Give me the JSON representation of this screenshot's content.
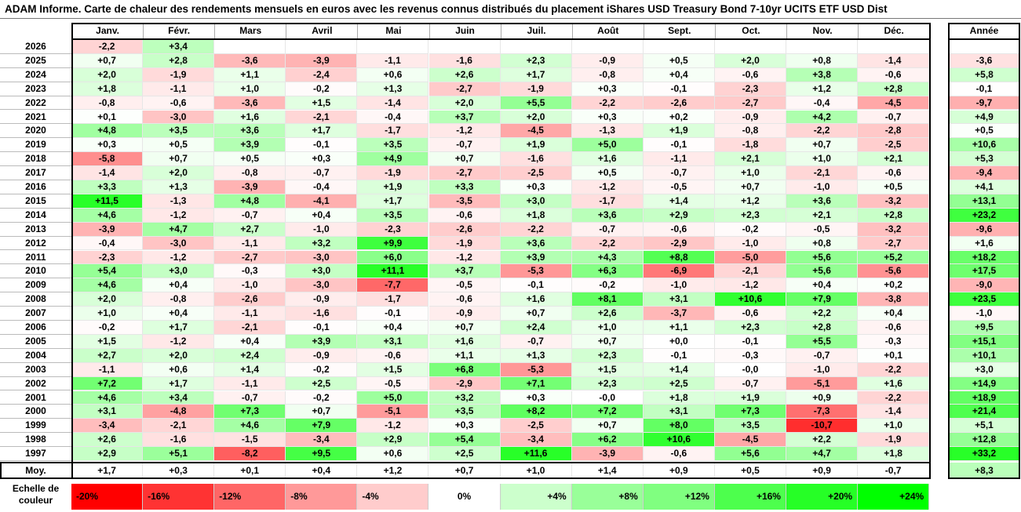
{
  "title": "ADAM Informe. Carte de chaleur des rendements mensuels en euros avec les revenus connus distribués du placement iShares USD Treasury Bond 7-10yr UCITS ETF USD Dist",
  "chart_data": {
    "type": "heatmap",
    "title": "ADAM Informe. Carte de chaleur des rendements mensuels en euros avec les revenus connus distribués du placement iShares USD Treasury Bond 7-10yr UCITS ETF USD Dist",
    "columns": [
      "Janv.",
      "Févr.",
      "Mars",
      "Avril",
      "Mai",
      "Juin",
      "Juil.",
      "Août",
      "Sept.",
      "Oct.",
      "Nov.",
      "Déc."
    ],
    "year_header": "Année",
    "rows": [
      {
        "year": "2026",
        "months": [
          "-2,2",
          "+3,4",
          "",
          "",
          "",
          "",
          "",
          "",
          "",
          "",
          "",
          ""
        ],
        "annual": ""
      },
      {
        "year": "2025",
        "months": [
          "+0,7",
          "+2,8",
          "-3,6",
          "-3,9",
          "-1,1",
          "-1,6",
          "+2,3",
          "-0,9",
          "+0,5",
          "+2,0",
          "+0,8",
          "-1,4"
        ],
        "annual": "-3,6"
      },
      {
        "year": "2024",
        "months": [
          "+2,0",
          "-1,9",
          "+1,1",
          "-2,4",
          "+0,6",
          "+2,6",
          "+1,7",
          "-0,8",
          "+0,4",
          "-0,6",
          "+3,8",
          "-0,6"
        ],
        "annual": "+5,8"
      },
      {
        "year": "2023",
        "months": [
          "+1,8",
          "-1,1",
          "+1,0",
          "-0,2",
          "+1,3",
          "-2,7",
          "-1,9",
          "+0,3",
          "-0,1",
          "-2,3",
          "+1,2",
          "+2,8"
        ],
        "annual": "-0,1"
      },
      {
        "year": "2022",
        "months": [
          "-0,8",
          "-0,6",
          "-3,6",
          "+1,5",
          "-1,4",
          "+2,0",
          "+5,5",
          "-2,2",
          "-2,6",
          "-2,7",
          "-0,4",
          "-4,5"
        ],
        "annual": "-9,7"
      },
      {
        "year": "2021",
        "months": [
          "+0,1",
          "-3,0",
          "+1,6",
          "-2,1",
          "-0,4",
          "+3,7",
          "+2,0",
          "+0,3",
          "+0,2",
          "-0,9",
          "+4,2",
          "-0,7"
        ],
        "annual": "+4,9"
      },
      {
        "year": "2020",
        "months": [
          "+4,8",
          "+3,5",
          "+3,6",
          "+1,7",
          "-1,7",
          "-1,2",
          "-4,5",
          "-1,3",
          "+1,9",
          "-0,8",
          "-2,2",
          "-2,8"
        ],
        "annual": "+0,5"
      },
      {
        "year": "2019",
        "months": [
          "+0,3",
          "+0,5",
          "+3,9",
          "-0,1",
          "+3,5",
          "-0,7",
          "+1,9",
          "+5,0",
          "-0,1",
          "-1,8",
          "+0,7",
          "-2,5"
        ],
        "annual": "+10,6"
      },
      {
        "year": "2018",
        "months": [
          "-5,8",
          "+0,7",
          "+0,5",
          "+0,3",
          "+4,9",
          "+0,7",
          "-1,6",
          "+1,6",
          "-1,1",
          "+2,1",
          "+1,0",
          "+2,1"
        ],
        "annual": "+5,3"
      },
      {
        "year": "2017",
        "months": [
          "-1,4",
          "+2,0",
          "-0,8",
          "-0,7",
          "-1,9",
          "-2,7",
          "-2,5",
          "+0,5",
          "-0,7",
          "+1,0",
          "-2,1",
          "-0,6"
        ],
        "annual": "-9,4"
      },
      {
        "year": "2016",
        "months": [
          "+3,3",
          "+1,3",
          "-3,9",
          "-0,4",
          "+1,9",
          "+3,3",
          "+0,3",
          "-1,2",
          "-0,5",
          "+0,7",
          "-1,0",
          "+0,5"
        ],
        "annual": "+4,1"
      },
      {
        "year": "2015",
        "months": [
          "+11,5",
          "-1,3",
          "+4,8",
          "-4,1",
          "+1,7",
          "-3,5",
          "+3,0",
          "-1,7",
          "+1,4",
          "+1,2",
          "+3,6",
          "-3,2"
        ],
        "annual": "+13,1"
      },
      {
        "year": "2014",
        "months": [
          "+4,6",
          "-1,2",
          "-0,7",
          "+0,4",
          "+3,5",
          "-0,6",
          "+1,8",
          "+3,6",
          "+2,9",
          "+2,3",
          "+2,1",
          "+2,8"
        ],
        "annual": "+23,2"
      },
      {
        "year": "2013",
        "months": [
          "-3,9",
          "+4,7",
          "+2,7",
          "-1,0",
          "-2,3",
          "-2,6",
          "-2,2",
          "-0,7",
          "-0,6",
          "-0,2",
          "-0,5",
          "-3,2"
        ],
        "annual": "-9,6"
      },
      {
        "year": "2012",
        "months": [
          "-0,4",
          "-3,0",
          "-1,1",
          "+3,2",
          "+9,9",
          "-1,9",
          "+3,6",
          "-2,2",
          "-2,9",
          "-1,0",
          "+0,8",
          "-2,7"
        ],
        "annual": "+1,6"
      },
      {
        "year": "2011",
        "months": [
          "-2,3",
          "-1,2",
          "-2,7",
          "-3,0",
          "+6,0",
          "-1,2",
          "+3,9",
          "+4,3",
          "+8,8",
          "-5,0",
          "+5,6",
          "+5,2"
        ],
        "annual": "+18,2"
      },
      {
        "year": "2010",
        "months": [
          "+5,4",
          "+3,0",
          "-0,3",
          "+3,0",
          "+11,1",
          "+3,7",
          "-5,3",
          "+6,3",
          "-6,9",
          "-2,1",
          "+5,6",
          "-5,6"
        ],
        "annual": "+17,5"
      },
      {
        "year": "2009",
        "months": [
          "+4,6",
          "+0,4",
          "-1,0",
          "-3,0",
          "-7,7",
          "-0,5",
          "-0,1",
          "-0,2",
          "-1,0",
          "-1,2",
          "+0,4",
          "+0,2"
        ],
        "annual": "-9,0"
      },
      {
        "year": "2008",
        "months": [
          "+2,0",
          "-0,8",
          "-2,6",
          "-0,9",
          "-1,7",
          "-0,6",
          "+1,6",
          "+8,1",
          "+3,1",
          "+10,6",
          "+7,9",
          "-3,8"
        ],
        "annual": "+23,5"
      },
      {
        "year": "2007",
        "months": [
          "+1,0",
          "+0,4",
          "-1,1",
          "-1,6",
          "-0,1",
          "-0,9",
          "+0,7",
          "+2,6",
          "-3,7",
          "-0,6",
          "+2,2",
          "+0,4"
        ],
        "annual": "-1,0"
      },
      {
        "year": "2006",
        "months": [
          "-0,2",
          "+1,7",
          "-2,1",
          "-0,1",
          "+0,4",
          "+0,7",
          "+2,4",
          "+1,0",
          "+1,1",
          "+2,3",
          "+2,8",
          "-0,6"
        ],
        "annual": "+9,5"
      },
      {
        "year": "2005",
        "months": [
          "+1,5",
          "-1,2",
          "+0,4",
          "+3,9",
          "+3,1",
          "+1,6",
          "-0,7",
          "+0,7",
          "+0,0",
          "-0,1",
          "+5,5",
          "-0,3"
        ],
        "annual": "+15,1"
      },
      {
        "year": "2004",
        "months": [
          "+2,7",
          "+2,0",
          "+2,4",
          "-0,9",
          "-0,6",
          "+1,1",
          "+1,3",
          "+2,3",
          "-0,1",
          "-0,3",
          "-0,7",
          "+0,1"
        ],
        "annual": "+10,1"
      },
      {
        "year": "2003",
        "months": [
          "-1,1",
          "+0,6",
          "+1,4",
          "-0,2",
          "+1,5",
          "+6,8",
          "-5,3",
          "+1,5",
          "+1,4",
          "-0,0",
          "-1,0",
          "-2,2"
        ],
        "annual": "+3,0"
      },
      {
        "year": "2002",
        "months": [
          "+7,2",
          "+1,7",
          "-1,1",
          "+2,5",
          "-0,5",
          "-2,9",
          "+7,1",
          "+2,3",
          "+2,5",
          "-0,7",
          "-5,1",
          "+1,6"
        ],
        "annual": "+14,9"
      },
      {
        "year": "2001",
        "months": [
          "+4,6",
          "+3,4",
          "-0,7",
          "-0,2",
          "+5,0",
          "+3,2",
          "+0,3",
          "-0,0",
          "+1,8",
          "+1,9",
          "+0,9",
          "-2,2"
        ],
        "annual": "+18,9"
      },
      {
        "year": "2000",
        "months": [
          "+3,1",
          "-4,8",
          "+7,3",
          "+0,7",
          "-5,1",
          "+3,5",
          "+8,2",
          "+7,2",
          "+3,1",
          "+7,3",
          "-7,3",
          "-1,4"
        ],
        "annual": "+21,4"
      },
      {
        "year": "1999",
        "months": [
          "-3,4",
          "-2,1",
          "+4,6",
          "+7,9",
          "-1,2",
          "+0,3",
          "-2,5",
          "+0,7",
          "+8,0",
          "+3,5",
          "-10,7",
          "+1,0"
        ],
        "annual": "+5,1"
      },
      {
        "year": "1998",
        "months": [
          "+2,6",
          "-1,6",
          "-1,5",
          "-3,4",
          "+2,9",
          "+5,4",
          "-3,4",
          "+6,2",
          "+10,6",
          "-4,5",
          "+2,2",
          "-1,9"
        ],
        "annual": "+12,8"
      },
      {
        "year": "1997",
        "months": [
          "+2,9",
          "+5,1",
          "-8,2",
          "+9,5",
          "+0,6",
          "+2,5",
          "+11,6",
          "-3,9",
          "-0,6",
          "+5,6",
          "+4,7",
          "+1,8"
        ],
        "annual": "+33,2"
      }
    ],
    "average": {
      "label": "Moy.",
      "months": [
        "+1,7",
        "+0,3",
        "+0,1",
        "+0,4",
        "+1,2",
        "+0,7",
        "+1,0",
        "+1,4",
        "+0,9",
        "+0,5",
        "+0,9",
        "-0,7"
      ],
      "annual": "+8,3"
    },
    "legend": {
      "label_line1": "Echelle de",
      "label_line2": "couleur",
      "steps": [
        {
          "label": "-20%",
          "color": "#ff0000"
        },
        {
          "label": "-16%",
          "color": "#ff3333"
        },
        {
          "label": "-12%",
          "color": "#ff6666"
        },
        {
          "label": "-8%",
          "color": "#ff9999"
        },
        {
          "label": "-4%",
          "color": "#ffcccc"
        },
        {
          "label": "0%",
          "color": "#ffffff"
        },
        {
          "label": "+4%",
          "color": "#ccffcc"
        },
        {
          "label": "+8%",
          "color": "#99ff99"
        },
        {
          "label": "+12%",
          "color": "#80ff80"
        },
        {
          "label": "+16%",
          "color": "#4dff4d"
        },
        {
          "label": "+20%",
          "color": "#26ff26"
        },
        {
          "label": "+24%",
          "color": "#00ff00"
        }
      ]
    }
  }
}
